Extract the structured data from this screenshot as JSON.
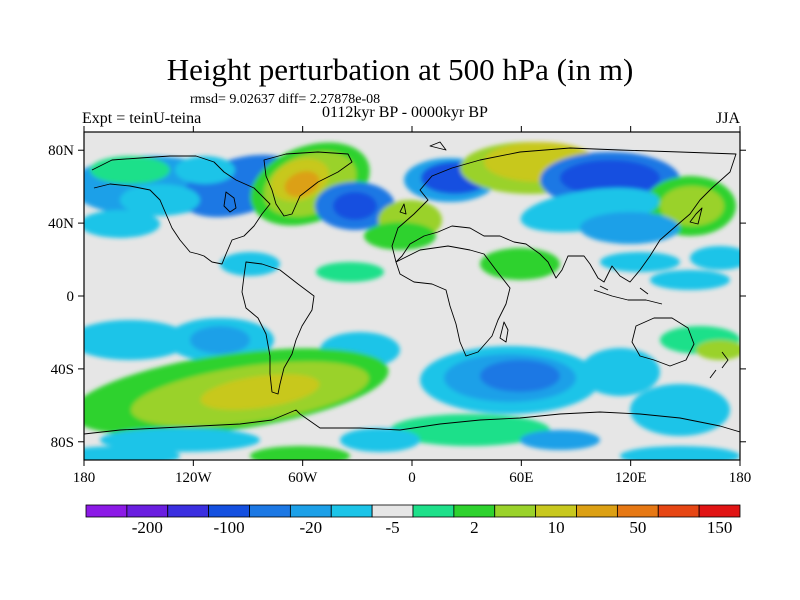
{
  "title": "Height perturbation at 500 hPa (in m)",
  "stats": "rmsd= 9.02637 diff= 2.27878e-08",
  "experiment": "Expt = teinU-teina",
  "period": "0112kyr BP - 0000kyr BP",
  "season": "JJA",
  "map": {
    "projection": "cylindrical equidistant",
    "lon_range": [
      -180,
      180
    ],
    "lat_range": [
      -90,
      90
    ],
    "lat_labels": [
      "80N",
      "40N",
      "0",
      "40S",
      "80S"
    ],
    "lon_labels": [
      "180",
      "120W",
      "60W",
      "0",
      "60E",
      "120E",
      "180"
    ]
  },
  "colorbar": {
    "labels": [
      "-200",
      "-100",
      "-20",
      "-5",
      "2",
      "10",
      "50",
      "150"
    ],
    "colors": [
      "#8c1ae6",
      "#6a1ee0",
      "#3b2fe0",
      "#1450e0",
      "#1c78e4",
      "#1ca0e8",
      "#1cc4e8",
      "#e6e6e6",
      "#1ee08a",
      "#2ed22e",
      "#9ad22a",
      "#c8c81e",
      "#dca014",
      "#e67814",
      "#e64614",
      "#e11414"
    ]
  },
  "palette": {
    "neutral": "#e6e6e6",
    "light_neg": "#1cc4e8",
    "mid_neg": "#1ca0e8",
    "strong_neg": "#1c78e4",
    "deep_neg": "#1450e0",
    "light_pos": "#1ee08a",
    "mid_pos": "#2ed22e",
    "pos3": "#9ad22a",
    "pos4": "#c8c81e",
    "pos5": "#dca014"
  }
}
